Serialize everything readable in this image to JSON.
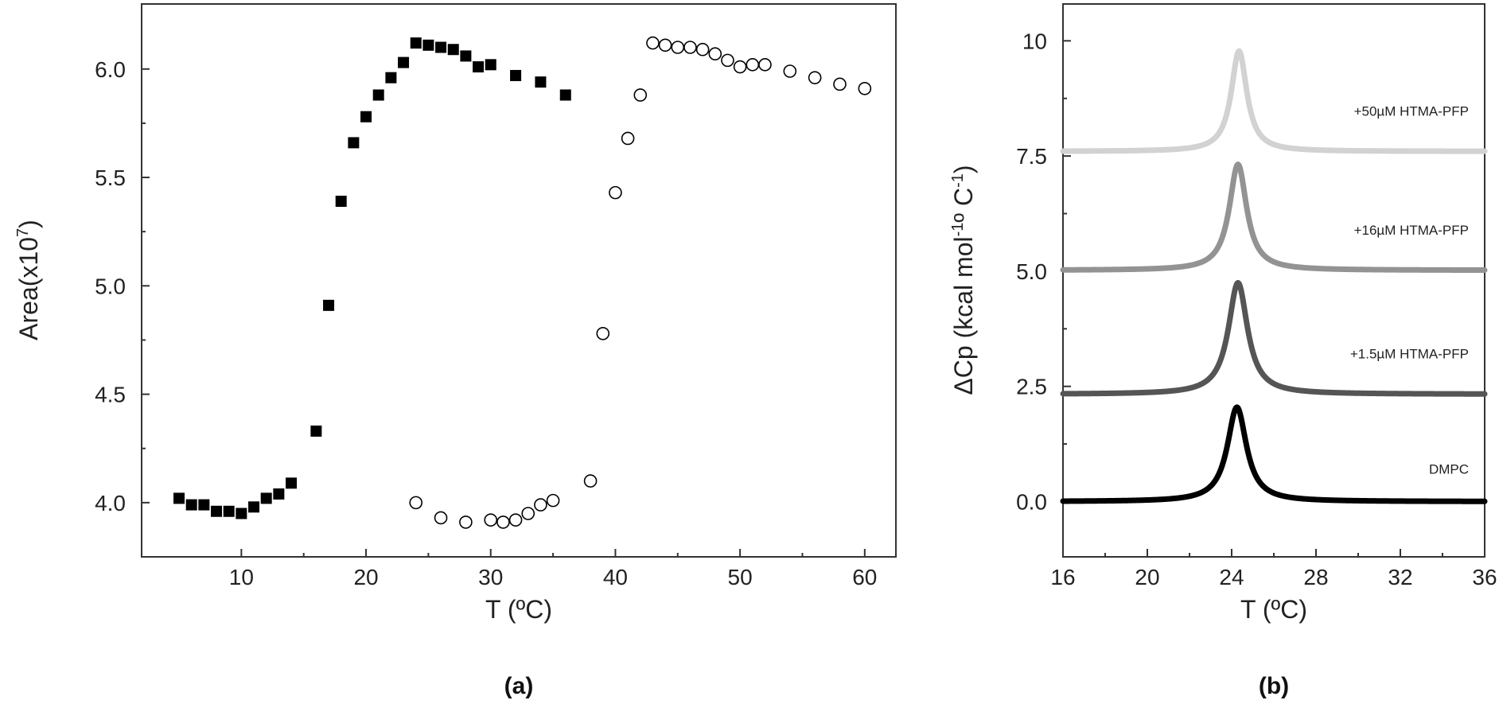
{
  "chart_data": [
    {
      "type": "scatter",
      "panel_label": "(a)",
      "xlabel": "T (ºC)",
      "ylabel_main": "Area(x10",
      "ylabel_sup": "7",
      "ylabel_end": ")",
      "xlim": [
        2,
        62.5
      ],
      "ylim": [
        3.75,
        6.3
      ],
      "xticks": [
        10,
        20,
        30,
        40,
        50,
        60
      ],
      "xtick_labels": [
        "10",
        "20",
        "30",
        "40",
        "50",
        "60"
      ],
      "yticks": [
        4.0,
        4.5,
        5.0,
        5.5,
        6.0
      ],
      "ytick_labels": [
        "4.0",
        "4.5",
        "5.0",
        "5.5",
        "6.0"
      ],
      "grid": false,
      "series": [
        {
          "marker": "filled-square",
          "color": "#000000",
          "points": [
            [
              5,
              4.02
            ],
            [
              6,
              3.99
            ],
            [
              7,
              3.99
            ],
            [
              8,
              3.96
            ],
            [
              9,
              3.96
            ],
            [
              10,
              3.95
            ],
            [
              11,
              3.98
            ],
            [
              12,
              4.02
            ],
            [
              13,
              4.04
            ],
            [
              14,
              4.09
            ],
            [
              16,
              4.33
            ],
            [
              17,
              4.91
            ],
            [
              18,
              5.39
            ],
            [
              19,
              5.66
            ],
            [
              20,
              5.78
            ],
            [
              21,
              5.88
            ],
            [
              22,
              5.96
            ],
            [
              23,
              6.03
            ],
            [
              24,
              6.12
            ],
            [
              25,
              6.11
            ],
            [
              26,
              6.1
            ],
            [
              27,
              6.09
            ],
            [
              28,
              6.06
            ],
            [
              29,
              6.01
            ],
            [
              30,
              6.02
            ],
            [
              32,
              5.97
            ],
            [
              34,
              5.94
            ],
            [
              36,
              5.88
            ]
          ]
        },
        {
          "marker": "open-circle",
          "color": "#000000",
          "points": [
            [
              24,
              4.0
            ],
            [
              26,
              3.93
            ],
            [
              28,
              3.91
            ],
            [
              30,
              3.92
            ],
            [
              31,
              3.91
            ],
            [
              32,
              3.92
            ],
            [
              33,
              3.95
            ],
            [
              34,
              3.99
            ],
            [
              35,
              4.01
            ],
            [
              38,
              4.1
            ],
            [
              39,
              4.78
            ],
            [
              40,
              5.43
            ],
            [
              41,
              5.68
            ],
            [
              42,
              5.88
            ],
            [
              43,
              6.12
            ],
            [
              44,
              6.11
            ],
            [
              45,
              6.1
            ],
            [
              46,
              6.1
            ],
            [
              47,
              6.09
            ],
            [
              48,
              6.07
            ],
            [
              49,
              6.04
            ],
            [
              50,
              6.01
            ],
            [
              51,
              6.02
            ],
            [
              52,
              6.02
            ],
            [
              54,
              5.99
            ],
            [
              56,
              5.96
            ],
            [
              58,
              5.93
            ],
            [
              60,
              5.91
            ]
          ]
        }
      ]
    },
    {
      "type": "line",
      "panel_label": "(b)",
      "xlabel": "T (ºC)",
      "ylabel_main": "ΔCp (kcal mol",
      "ylabel_sup1": "-1",
      "ylabel_mid": "º C",
      "ylabel_sup2": "-1",
      "ylabel_end": ")",
      "xlim": [
        16,
        36
      ],
      "ylim": [
        -1.2,
        10.8
      ],
      "xticks": [
        16,
        20,
        24,
        28,
        32,
        36
      ],
      "xtick_labels": [
        "16",
        "20",
        "24",
        "28",
        "32",
        "36"
      ],
      "yticks": [
        0,
        2.5,
        5,
        7.5,
        10
      ],
      "ytick_labels": [
        "0.0",
        "2.5",
        "5.0",
        "7.5",
        "10"
      ],
      "grid": false,
      "series": [
        {
          "name": "DMPC",
          "color": "#000000",
          "baseline": 0.0,
          "peak": 2.05,
          "tm": 24.25,
          "width": 0.55
        },
        {
          "name": "+1.5µM HTMA-PFP",
          "color": "#555555",
          "baseline": 2.33,
          "peak": 4.75,
          "tm": 24.3,
          "width": 0.55
        },
        {
          "name": "+16µM HTMA-PFP",
          "color": "#939393",
          "baseline": 5.02,
          "peak": 7.32,
          "tm": 24.3,
          "width": 0.5
        },
        {
          "name": "+50µM HTMA-PFP",
          "color": "#d2d2d2",
          "baseline": 7.6,
          "peak": 9.78,
          "tm": 24.35,
          "width": 0.45
        }
      ]
    }
  ]
}
